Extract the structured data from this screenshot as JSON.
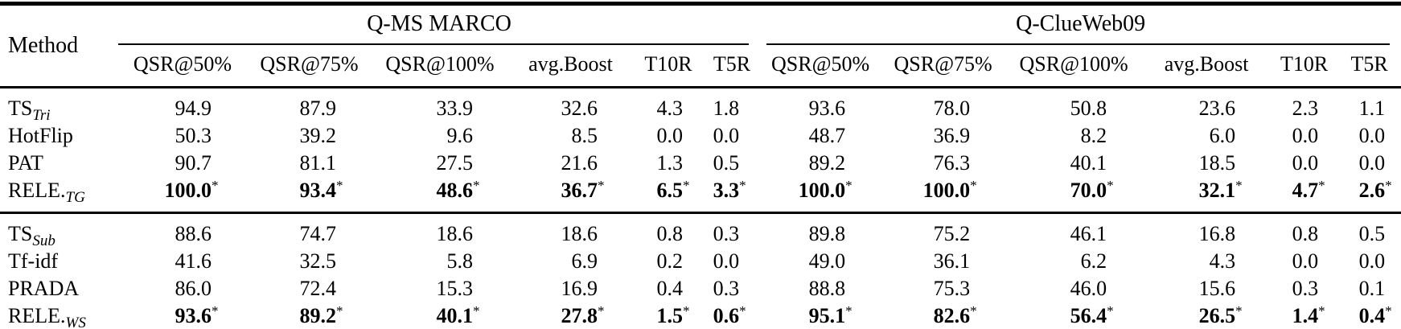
{
  "table": {
    "method_col_header": "Method",
    "star_symbol": "*",
    "groups": [
      {
        "label": "Q-MS MARCO"
      },
      {
        "label": "Q-ClueWeb09"
      }
    ],
    "sub_headers": [
      "QSR@50%",
      "QSR@75%",
      "QSR@100%",
      "avg.Boost",
      "T10R",
      "T5R"
    ],
    "sections": [
      {
        "rows": [
          {
            "method_base": "TS",
            "method_sub": "Tri",
            "bold": false,
            "starred": false,
            "values": [
              "94.9",
              "87.9",
              "33.9",
              "32.6",
              "4.3",
              "1.8",
              "93.6",
              "78.0",
              "50.8",
              "23.6",
              "2.3",
              "1.1"
            ]
          },
          {
            "method_base": "HotFlip",
            "method_sub": "",
            "bold": false,
            "starred": false,
            "values": [
              "50.3",
              "39.2",
              "9.6",
              "8.5",
              "0.0",
              "0.0",
              "48.7",
              "36.9",
              "8.2",
              "6.0",
              "0.0",
              "0.0"
            ]
          },
          {
            "method_base": "PAT",
            "method_sub": "",
            "bold": false,
            "starred": false,
            "values": [
              "90.7",
              "81.1",
              "27.5",
              "21.6",
              "1.3",
              "0.5",
              "89.2",
              "76.3",
              "40.1",
              "18.5",
              "0.0",
              "0.0"
            ]
          },
          {
            "method_base": "RELE.",
            "method_sub": "TG",
            "bold": true,
            "starred": true,
            "values": [
              "100.0",
              "93.4",
              "48.6",
              "36.7",
              "6.5",
              "3.3",
              "100.0",
              "100.0",
              "70.0",
              "32.1",
              "4.7",
              "2.6"
            ]
          }
        ]
      },
      {
        "rows": [
          {
            "method_base": "TS",
            "method_sub": "Sub",
            "bold": false,
            "starred": false,
            "values": [
              "88.6",
              "74.7",
              "18.6",
              "18.6",
              "0.8",
              "0.3",
              "89.8",
              "75.2",
              "46.1",
              "16.8",
              "0.8",
              "0.5"
            ]
          },
          {
            "method_base": "Tf-idf",
            "method_sub": "",
            "bold": false,
            "starred": false,
            "values": [
              "41.6",
              "32.5",
              "5.8",
              "6.9",
              "0.2",
              "0.0",
              "49.0",
              "36.1",
              "6.2",
              "4.3",
              "0.0",
              "0.0"
            ]
          },
          {
            "method_base": "PRADA",
            "method_sub": "",
            "bold": false,
            "starred": false,
            "values": [
              "86.0",
              "72.4",
              "15.3",
              "16.9",
              "0.4",
              "0.3",
              "88.8",
              "75.3",
              "46.0",
              "15.6",
              "0.3",
              "0.1"
            ]
          },
          {
            "method_base": "RELE.",
            "method_sub": "WS",
            "bold": true,
            "starred": true,
            "values": [
              "93.6",
              "89.2",
              "40.1",
              "27.8",
              "1.5",
              "0.6",
              "95.1",
              "82.6",
              "56.4",
              "26.5",
              "1.4",
              "0.4"
            ]
          }
        ]
      }
    ]
  }
}
